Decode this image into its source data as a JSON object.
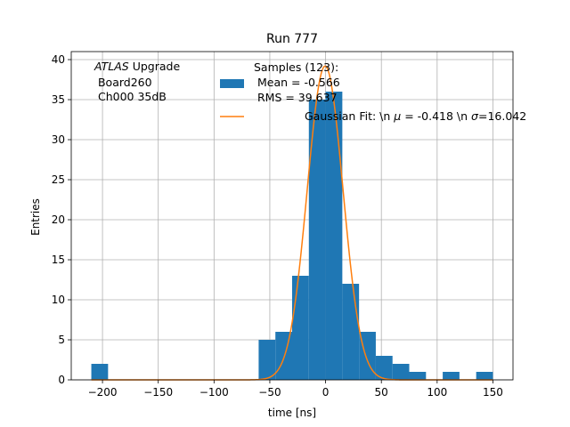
{
  "chart_data": {
    "type": "bar",
    "title": "Run 777",
    "xlabel": "time [ns]",
    "ylabel": "Entries",
    "xlim": [
      -228,
      168
    ],
    "ylim": [
      0,
      41
    ],
    "grid": true,
    "legend_placement": "top-right",
    "xticks": [
      -200,
      -150,
      -100,
      -50,
      0,
      50,
      100,
      150
    ],
    "yticks": [
      0,
      5,
      10,
      15,
      20,
      25,
      30,
      35,
      40
    ],
    "xtick_labels": [
      "−200",
      "−150",
      "−100",
      "−50",
      "0",
      "50",
      "100",
      "150"
    ],
    "ytick_labels": [
      "0",
      "5",
      "10",
      "15",
      "20",
      "25",
      "30",
      "35",
      "40"
    ],
    "annotation": {
      "line1_italic": "ATLAS",
      "line1_rest": " Upgrade",
      "line2": " Board260",
      "line3": " Ch000 35dB"
    },
    "histogram": {
      "name": "Samples (123):\n Mean = -0.566\n RMS = 39.637",
      "legend_lines": [
        "Samples (123):",
        " Mean = -0.566",
        " RMS = 39.637"
      ],
      "bins": [
        {
          "x0": -210,
          "x1": -195,
          "count": 2
        },
        {
          "x0": -60,
          "x1": -45,
          "count": 5
        },
        {
          "x0": -45,
          "x1": -30,
          "count": 6
        },
        {
          "x0": -30,
          "x1": -15,
          "count": 13
        },
        {
          "x0": -15,
          "x1": 0,
          "count": 35
        },
        {
          "x0": 0,
          "x1": 15,
          "count": 36
        },
        {
          "x0": 15,
          "x1": 30,
          "count": 12
        },
        {
          "x0": 30,
          "x1": 45,
          "count": 6
        },
        {
          "x0": 45,
          "x1": 60,
          "count": 3
        },
        {
          "x0": 60,
          "x1": 75,
          "count": 2
        },
        {
          "x0": 75,
          "x1": 90,
          "count": 1
        },
        {
          "x0": 105,
          "x1": 120,
          "count": 1
        },
        {
          "x0": 135,
          "x1": 150,
          "count": 1
        }
      ]
    },
    "fit": {
      "name": "Gaussian Fit: \\n μ = -0.418 \\n σ=16.042",
      "legend_parts": [
        "Gaussian Fit: \\n ",
        "μ",
        " = -0.418 \\n ",
        "σ",
        "=16.042"
      ],
      "mu": -0.418,
      "sigma": 16.042,
      "amplitude": 39.2,
      "x_range": [
        -210,
        150
      ]
    },
    "colors": {
      "histogram": "#1f77b4",
      "fit": "#ff7f0e",
      "grid": "#b0b0b0"
    }
  }
}
